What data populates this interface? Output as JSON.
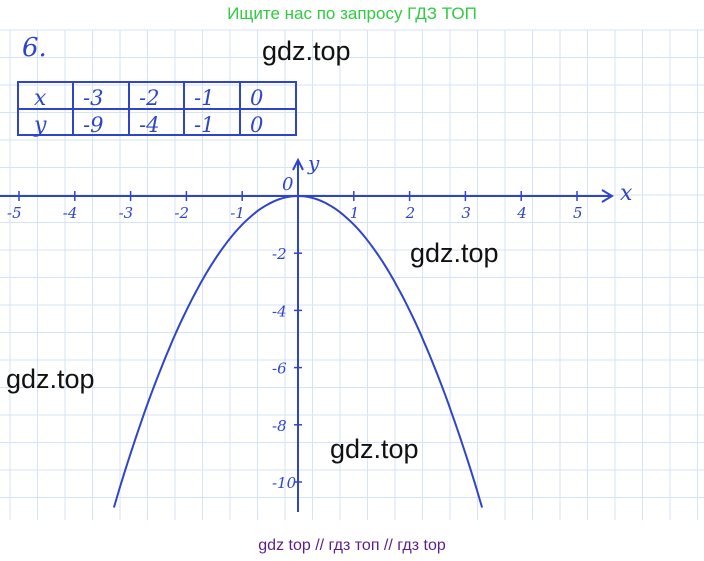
{
  "banner": "Ищите нас по запросу ГДЗ ТОП",
  "problem_number": "6.",
  "watermarks": [
    "gdz.top",
    "gdz.top",
    "gdz.top",
    "gdz.top"
  ],
  "footer": "gdz top  //  гдз топ  //  гдз top",
  "colors": {
    "ink": "#2f45c9",
    "banner": "#2ecc40",
    "footer": "#5b1f8a",
    "grid": "#d4e3f5"
  },
  "table": {
    "x_label": "x",
    "y_label": "y",
    "x": [
      "-3",
      "-2",
      "-1",
      "0"
    ],
    "y": [
      "-9",
      "-4",
      "-1",
      "0"
    ]
  },
  "graph": {
    "function": "y = -x^2",
    "x_axis_label": "x",
    "y_axis_label": "y",
    "origin_label": "0",
    "x_ticks": [
      "-5",
      "-4",
      "-3",
      "-2",
      "-1",
      "1",
      "2",
      "3",
      "4",
      "5"
    ],
    "y_ticks": [
      "-2",
      "-4",
      "-6",
      "-8",
      "-10"
    ]
  }
}
